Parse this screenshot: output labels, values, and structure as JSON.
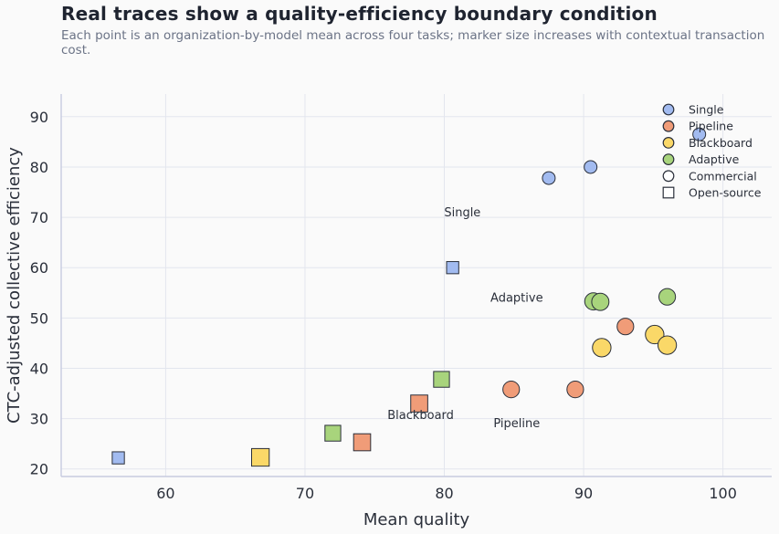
{
  "chart_data": {
    "type": "scatter",
    "title": "Real traces show a quality-efficiency boundary condition",
    "subtitle": "Each point is an organization-by-model mean across four tasks; marker size increases with contextual transaction cost.",
    "xlabel": "Mean quality",
    "ylabel": "CTC-adjusted collective efficiency",
    "xlim": [
      52.5,
      103.5
    ],
    "ylim": [
      18.5,
      94.5
    ],
    "xticks": [
      60,
      70,
      80,
      90,
      100
    ],
    "yticks": [
      20,
      30,
      40,
      50,
      60,
      70,
      80,
      90
    ],
    "grid": true,
    "legend_position": "top-right",
    "colors": {
      "Single": "#a2bbf0",
      "Pipeline": "#f09c78",
      "Blackboard": "#fad868",
      "Adaptive": "#a8d47c"
    },
    "series": [
      {
        "name": "Single",
        "points": [
          {
            "x": 87.5,
            "y": 77.8,
            "type": "Commercial",
            "size": 1.0
          },
          {
            "x": 90.5,
            "y": 80.0,
            "type": "Commercial",
            "size": 1.0
          },
          {
            "x": 98.3,
            "y": 86.5,
            "type": "Commercial",
            "size": 1.0
          },
          {
            "x": 80.6,
            "y": 60.0,
            "type": "Open-source",
            "size": 1.0
          },
          {
            "x": 56.6,
            "y": 22.2,
            "type": "Open-source",
            "size": 1.0
          }
        ]
      },
      {
        "name": "Pipeline",
        "points": [
          {
            "x": 84.8,
            "y": 35.8,
            "type": "Commercial",
            "size": 1.3
          },
          {
            "x": 89.4,
            "y": 35.8,
            "type": "Commercial",
            "size": 1.3
          },
          {
            "x": 93.0,
            "y": 48.3,
            "type": "Commercial",
            "size": 1.3
          },
          {
            "x": 78.2,
            "y": 33.0,
            "type": "Open-source",
            "size": 1.4
          },
          {
            "x": 74.1,
            "y": 25.3,
            "type": "Open-source",
            "size": 1.4
          }
        ]
      },
      {
        "name": "Blackboard",
        "points": [
          {
            "x": 91.3,
            "y": 44.1,
            "type": "Commercial",
            "size": 1.45
          },
          {
            "x": 95.1,
            "y": 46.7,
            "type": "Commercial",
            "size": 1.45
          },
          {
            "x": 96.0,
            "y": 44.6,
            "type": "Commercial",
            "size": 1.45
          },
          {
            "x": 66.8,
            "y": 22.3,
            "type": "Open-source",
            "size": 1.45
          }
        ]
      },
      {
        "name": "Adaptive",
        "points": [
          {
            "x": 90.7,
            "y": 53.3,
            "type": "Commercial",
            "size": 1.35
          },
          {
            "x": 91.2,
            "y": 53.2,
            "type": "Commercial",
            "size": 1.35
          },
          {
            "x": 96.0,
            "y": 54.2,
            "type": "Commercial",
            "size": 1.3
          },
          {
            "x": 79.8,
            "y": 37.8,
            "type": "Open-source",
            "size": 1.3
          },
          {
            "x": 72.0,
            "y": 27.1,
            "type": "Open-source",
            "size": 1.3
          }
        ]
      }
    ],
    "annotations": [
      {
        "text": "Single",
        "x": 81.3,
        "y": 70.2
      },
      {
        "text": "Adaptive",
        "x": 85.2,
        "y": 53.2
      },
      {
        "text": "Blackboard",
        "x": 78.3,
        "y": 29.9
      },
      {
        "text": "Pipeline",
        "x": 85.2,
        "y": 28.3
      }
    ],
    "legend": [
      {
        "label": "Single",
        "marker": "circle",
        "color": "#a2bbf0"
      },
      {
        "label": "Pipeline",
        "marker": "circle",
        "color": "#f09c78"
      },
      {
        "label": "Blackboard",
        "marker": "circle",
        "color": "#fad868"
      },
      {
        "label": "Adaptive",
        "marker": "circle",
        "color": "#a8d47c"
      },
      {
        "label": "Commercial",
        "marker": "circle",
        "color": "#ffffff"
      },
      {
        "label": "Open-source",
        "marker": "square",
        "color": "#ffffff"
      }
    ]
  }
}
